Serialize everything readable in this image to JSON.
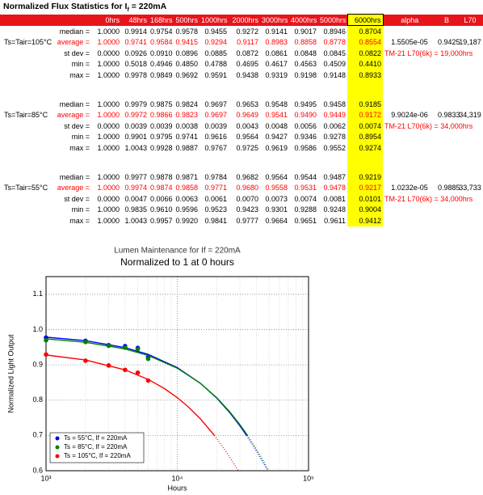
{
  "table": {
    "title": {
      "text": "Normalized Flux Statistics for I",
      "subscript": "f",
      "suffix": " = 220mA"
    },
    "header": [
      "0hrs",
      "48hrs",
      "168hrs",
      "500hrs",
      "1000hrs",
      "2000hrs",
      "3000hrs",
      "4000hrs",
      "5000hrs",
      "6000hrs",
      "alpha",
      "B",
      "L70"
    ],
    "groups": [
      {
        "label": "Ts=Tair=105°C",
        "rows": [
          {
            "stat": "median =",
            "values": [
              "1.0000",
              "0.9914",
              "0.9754",
              "0.9578",
              "0.9455",
              "0.9272",
              "0.9141",
              "0.9017",
              "0.8946",
              "0.8704"
            ]
          },
          {
            "stat": "average =",
            "values": [
              "1.0000",
              "0.9741",
              "0.9584",
              "0.9415",
              "0.9294",
              "0.9117",
              "0.8983",
              "0.8858",
              "0.8778",
              "0.8554"
            ],
            "extra": [
              "1.5505e-05",
              "0.9425",
              "19,187"
            ]
          },
          {
            "stat": "st dev =",
            "values": [
              "0.0000",
              "0.0926",
              "0.0910",
              "0.0896",
              "0.0885",
              "0.0872",
              "0.0861",
              "0.0848",
              "0.0845",
              "0.0822"
            ],
            "note": "TM-21 L70(6k) = 19,000hrs"
          },
          {
            "stat": "min =",
            "values": [
              "1.0000",
              "0.5018",
              "0.4946",
              "0.4850",
              "0.4788",
              "0.4695",
              "0.4617",
              "0.4563",
              "0.4509",
              "0.4410"
            ]
          },
          {
            "stat": "max =",
            "values": [
              "1.0000",
              "0.9978",
              "0.9849",
              "0.9692",
              "0.9591",
              "0.9438",
              "0.9319",
              "0.9198",
              "0.9148",
              "0.8933"
            ]
          }
        ]
      },
      {
        "label": "Ts=Tair=85°C",
        "rows": [
          {
            "stat": "median =",
            "values": [
              "1.0000",
              "0.9979",
              "0.9875",
              "0.9824",
              "0.9697",
              "0.9653",
              "0.9548",
              "0.9495",
              "0.9458",
              "0.9185"
            ]
          },
          {
            "stat": "average =",
            "values": [
              "1.0000",
              "0.9972",
              "0.9866",
              "0.9823",
              "0.9697",
              "0.9649",
              "0.9541",
              "0.9490",
              "0.9449",
              "0.9172"
            ],
            "extra": [
              "9.9024e-06",
              "0.9833",
              "34,319"
            ]
          },
          {
            "stat": "st dev =",
            "values": [
              "0.0000",
              "0.0039",
              "0.0039",
              "0.0038",
              "0.0039",
              "0.0043",
              "0.0048",
              "0.0056",
              "0.0062",
              "0.0074"
            ],
            "note": "TM-21 L70(6k) = 34,000hrs"
          },
          {
            "stat": "min =",
            "values": [
              "1.0000",
              "0.9901",
              "0.9795",
              "0.9741",
              "0.9616",
              "0.9564",
              "0.9427",
              "0.9346",
              "0.9278",
              "0.8954"
            ]
          },
          {
            "stat": "max =",
            "values": [
              "1.0000",
              "1.0043",
              "0.9928",
              "0.9887",
              "0.9767",
              "0.9725",
              "0.9619",
              "0.9586",
              "0.9552",
              "0.9274"
            ]
          }
        ]
      },
      {
        "label": "Ts=Tair=55°C",
        "rows": [
          {
            "stat": "median =",
            "values": [
              "1.0000",
              "0.9977",
              "0.9878",
              "0.9871",
              "0.9784",
              "0.9682",
              "0.9564",
              "0.9544",
              "0.9487",
              "0.9219"
            ]
          },
          {
            "stat": "average =",
            "values": [
              "1.0000",
              "0.9974",
              "0.9874",
              "0.9858",
              "0.9771",
              "0.9680",
              "0.9558",
              "0.9531",
              "0.9478",
              "0.9217"
            ],
            "extra": [
              "1.0232e-05",
              "0.9885",
              "33,733"
            ]
          },
          {
            "stat": "st dev =",
            "values": [
              "0.0000",
              "0.0047",
              "0.0066",
              "0.0063",
              "0.0061",
              "0.0070",
              "0.0073",
              "0.0074",
              "0.0081",
              "0.0101"
            ],
            "note": "TM-21 L70(6k) = 34,000hrs"
          },
          {
            "stat": "min =",
            "values": [
              "1.0000",
              "0.9835",
              "0.9610",
              "0.9596",
              "0.9523",
              "0.9423",
              "0.9301",
              "0.9288",
              "0.9248",
              "0.9004"
            ]
          },
          {
            "stat": "max =",
            "values": [
              "1.0000",
              "1.0043",
              "0.9957",
              "0.9920",
              "0.9841",
              "0.9777",
              "0.9664",
              "0.9651",
              "0.9611",
              "0.9412"
            ]
          }
        ]
      }
    ]
  },
  "chart_data": {
    "type": "scatter",
    "title": "Lumen Maintenance for If = 220mA",
    "subtitle": "Normalized to 1 at 0 hours",
    "x_label": "Hours",
    "y_label": "Normalized Light Output",
    "log_x": true,
    "grid": true,
    "legend": "lower left",
    "xlim": [
      1000,
      100000
    ],
    "xticks": [
      {
        "value": 1000,
        "label": "10³"
      },
      {
        "value": 10000,
        "label": "10⁴"
      },
      {
        "value": 100000,
        "label": "10⁵"
      }
    ],
    "xminorticks": [
      2000,
      3000,
      4000,
      5000,
      6000,
      7000,
      8000,
      9000,
      20000,
      30000,
      40000,
      50000,
      60000,
      70000,
      80000,
      90000
    ],
    "ylim": [
      0.6,
      1.15
    ],
    "yticks": [
      0.6,
      0.7,
      0.8,
      0.9,
      {
        "value": 1,
        "label": "1.0"
      },
      1.1
    ],
    "x": [
      1000,
      2000,
      3000,
      4000,
      5000,
      6000
    ],
    "series": [
      {
        "name": "Ts = 55°C, If = 220mA",
        "color": "#0000ff",
        "values": [
          0.9771,
          0.968,
          0.9558,
          0.9531,
          0.9478,
          0.9217
        ],
        "fit": {
          "x": [
            1000,
            2000,
            4000,
            6000,
            10000,
            15000,
            20000,
            25000,
            30000,
            33733
          ],
          "y": [
            0.9784,
            0.9685,
            0.9489,
            0.9296,
            0.8923,
            0.8478,
            0.8056,
            0.7654,
            0.7273,
            0.7
          ]
        },
        "extrapolation": {
          "x": [
            33733,
            40000,
            45000,
            48797
          ],
          "y": [
            0.7,
            0.6563,
            0.6236,
            0.6
          ]
        }
      },
      {
        "name": "Ts = 85°C, If = 220mA",
        "color": "#008000",
        "values": [
          0.9697,
          0.9649,
          0.9541,
          0.949,
          0.9449,
          0.9172
        ],
        "fit": {
          "x": [
            1000,
            2000,
            4000,
            6000,
            10000,
            15000,
            20000,
            25000,
            30000,
            34319
          ],
          "y": [
            0.9736,
            0.964,
            0.9451,
            0.9266,
            0.8906,
            0.8476,
            0.8067,
            0.7677,
            0.7306,
            0.7
          ]
        },
        "extrapolation": {
          "x": [
            34319,
            40000,
            45000,
            49886
          ],
          "y": [
            0.7,
            0.6616,
            0.6297,
            0.6
          ]
        }
      },
      {
        "name": "Ts = 105°C, If = 220mA",
        "color": "#ff0000",
        "values": [
          0.9294,
          0.9117,
          0.8983,
          0.8858,
          0.8778,
          0.8554
        ],
        "fit": {
          "x": [
            1000,
            2000,
            4000,
            6000,
            8000,
            10000,
            12000,
            15000,
            19187
          ],
          "y": [
            0.928,
            0.9137,
            0.8858,
            0.8588,
            0.8326,
            0.8071,
            0.7825,
            0.747,
            0.7
          ]
        },
        "extrapolation": {
          "x": [
            19187,
            22000,
            25000,
            29127
          ],
          "y": [
            0.7,
            0.6701,
            0.6396,
            0.6
          ]
        }
      }
    ]
  }
}
